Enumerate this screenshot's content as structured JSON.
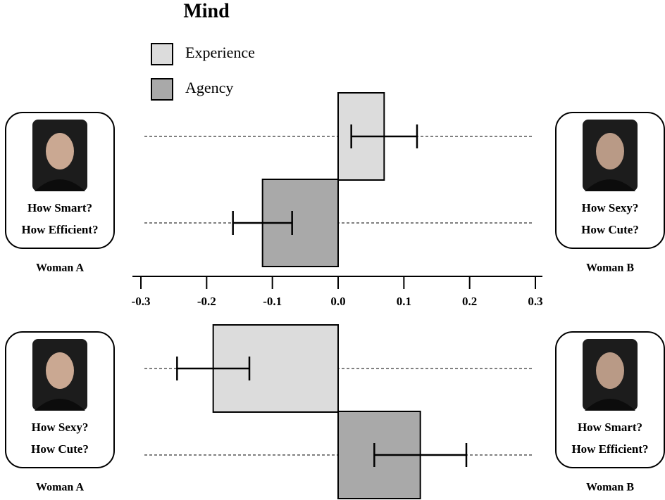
{
  "chart_data": {
    "type": "bar",
    "orientation": "horizontal",
    "title": "Mind",
    "series": [
      {
        "name": "Experience",
        "color": "#dcdcdc",
        "values": [
          0.07,
          -0.19
        ],
        "errors": [
          0.05,
          0.055
        ]
      },
      {
        "name": "Agency",
        "color": "#a9a9a9",
        "values": [
          -0.115,
          0.125
        ],
        "errors": [
          0.045,
          0.07
        ]
      }
    ],
    "xlim": [
      -0.3,
      0.3
    ],
    "xticks": [
      -0.3,
      -0.2,
      -0.1,
      {
        "value": 0,
        "label": "0.0"
      },
      0.1,
      0.2,
      0.3
    ],
    "panels": [
      {
        "left": {
          "lines": [
            "How Smart?",
            "How Efficient?"
          ],
          "caption": "Woman A"
        },
        "right": {
          "lines": [
            "How Sexy?",
            "How Cute?"
          ],
          "caption": "Woman B"
        }
      },
      {
        "left": {
          "lines": [
            "How Sexy?",
            "How Cute?"
          ],
          "caption": "Woman A"
        },
        "right": {
          "lines": [
            "How Smart?",
            "How Efficient?"
          ],
          "caption": "Woman B"
        }
      }
    ]
  }
}
